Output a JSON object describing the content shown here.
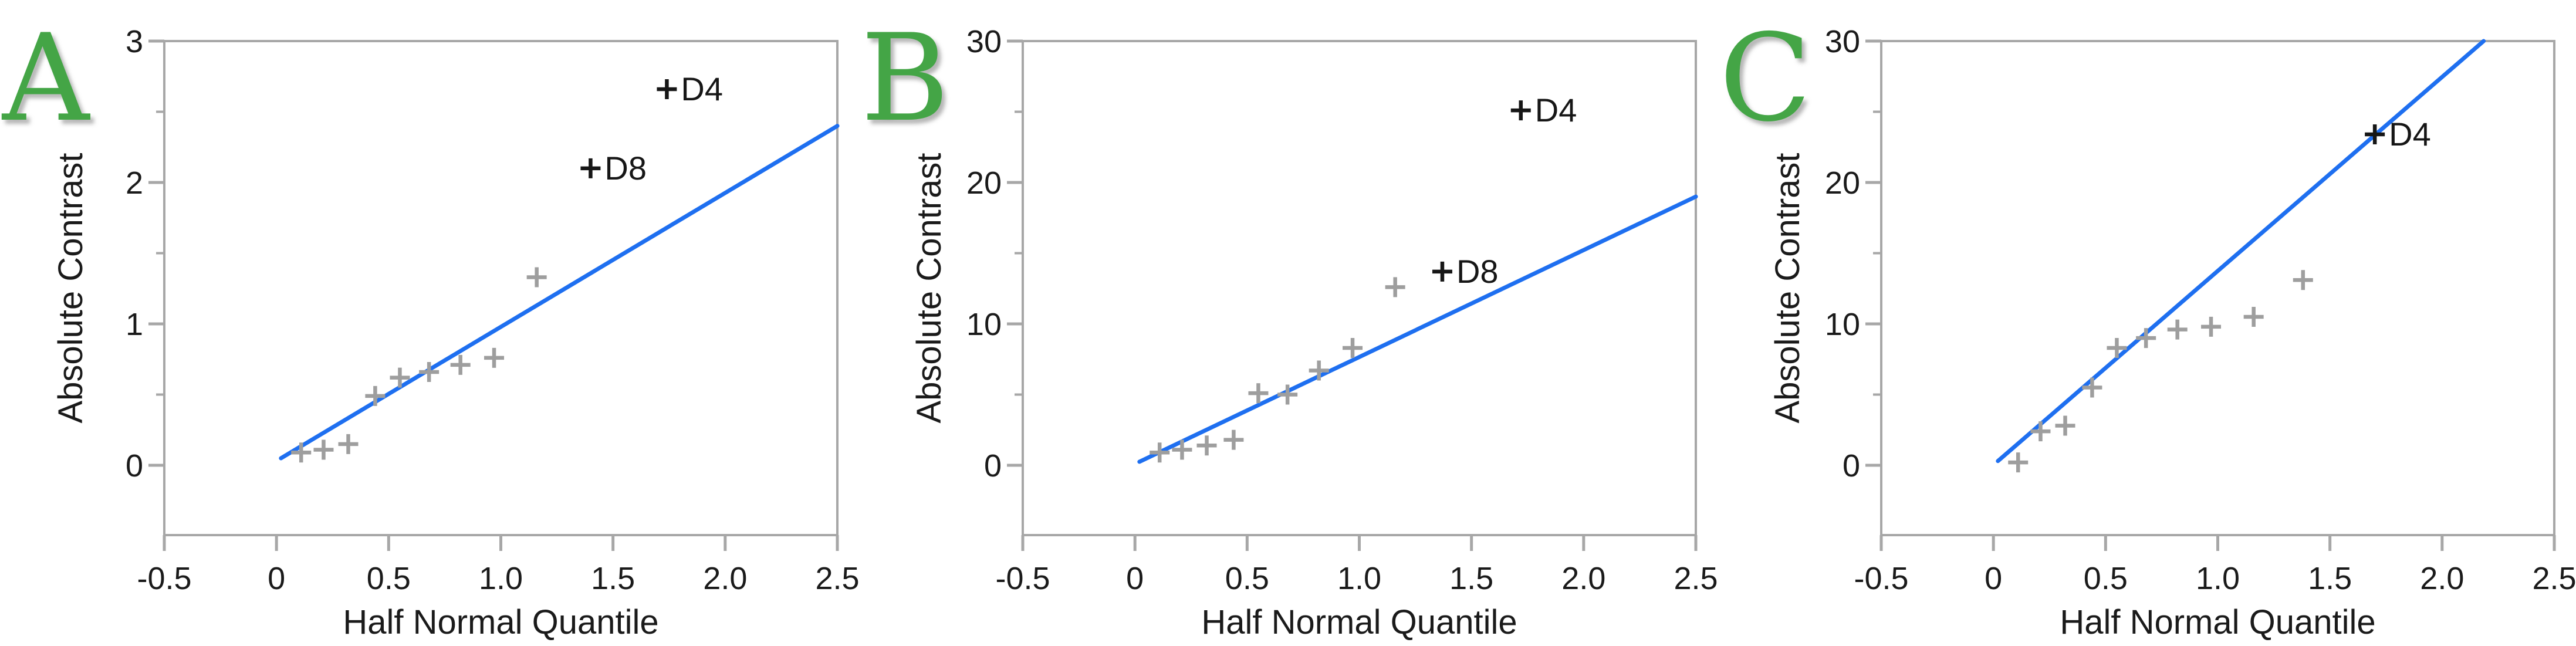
{
  "figure": {
    "x_axis_title": "Half Normal Quantile",
    "y_axis_title": "Absolute Contrast",
    "x_tick_labels": [
      "-0.5",
      "0",
      "0.5",
      "1.0",
      "1.5",
      "2.0",
      "2.5"
    ],
    "x_tick_values": [
      -0.5,
      0,
      0.5,
      1.0,
      1.5,
      2.0,
      2.5
    ]
  },
  "colors": {
    "fit_line_blue": "#1E6FF0",
    "marker_gray": "#9E9E9E",
    "outlier_black": "#161616",
    "axis_gray": "#A7A7A7",
    "tick_text_black": "#1A1A1A",
    "panel_letter_green": "#44A546",
    "background": "#FFFFFF"
  },
  "chart_data": [
    {
      "type": "scatter",
      "panel_letter": "A",
      "xlabel": "Half Normal Quantile",
      "ylabel": "Absolute Contrast",
      "xlim": [
        -0.5,
        2.5
      ],
      "ylim": [
        -0.49,
        3
      ],
      "y_tick_labels": [
        "0",
        "1",
        "2",
        "3"
      ],
      "y_tick_values": [
        0,
        1,
        2,
        3
      ],
      "y_minor_tick_values": [
        0.5,
        1.5,
        2.5
      ],
      "marker": "plus",
      "grid": false,
      "legend": null,
      "points": [
        [
          0.11,
          0.09
        ],
        [
          0.21,
          0.11
        ],
        [
          0.32,
          0.15
        ],
        [
          0.44,
          0.49
        ],
        [
          0.55,
          0.62
        ],
        [
          0.68,
          0.66
        ],
        [
          0.82,
          0.71
        ],
        [
          0.97,
          0.76
        ],
        [
          1.16,
          1.33
        ]
      ],
      "labeled_points": [
        {
          "label": "D8",
          "x": 1.4,
          "y": 2.1
        },
        {
          "label": "D4",
          "x": 1.74,
          "y": 2.66
        }
      ],
      "fit_line": {
        "x1": 0.02,
        "y1": 0.05,
        "x2": 2.5,
        "y2": 2.4
      }
    },
    {
      "type": "scatter",
      "panel_letter": "B",
      "xlabel": "Half Normal Quantile",
      "ylabel": "Absolute Contrast",
      "xlim": [
        -0.5,
        2.5
      ],
      "ylim": [
        -4.9,
        30
      ],
      "y_tick_labels": [
        "0",
        "10",
        "20",
        "30"
      ],
      "y_tick_values": [
        0,
        10,
        20,
        30
      ],
      "y_minor_tick_values": [
        5,
        15,
        25
      ],
      "marker": "plus",
      "grid": false,
      "legend": null,
      "points": [
        [
          0.11,
          0.9
        ],
        [
          0.21,
          1.1
        ],
        [
          0.32,
          1.4
        ],
        [
          0.44,
          1.8
        ],
        [
          0.55,
          5.1
        ],
        [
          0.68,
          5.0
        ],
        [
          0.82,
          6.7
        ],
        [
          0.97,
          8.3
        ],
        [
          1.16,
          12.6
        ]
      ],
      "labeled_points": [
        {
          "label": "D8",
          "x": 1.37,
          "y": 13.7
        },
        {
          "label": "D4",
          "x": 1.72,
          "y": 25.1
        }
      ],
      "fit_line": {
        "x1": 0.02,
        "y1": 0.25,
        "x2": 2.5,
        "y2": 19.0
      }
    },
    {
      "type": "scatter",
      "panel_letter": "C",
      "xlabel": "Half Normal Quantile",
      "ylabel": "Absolute Contrast",
      "xlim": [
        -0.5,
        2.5
      ],
      "ylim": [
        -4.9,
        30
      ],
      "y_tick_labels": [
        "0",
        "10",
        "20",
        "30"
      ],
      "y_tick_values": [
        0,
        10,
        20,
        30
      ],
      "y_minor_tick_values": [
        5,
        15,
        25
      ],
      "marker": "plus",
      "grid": false,
      "legend": null,
      "points": [
        [
          0.11,
          0.2
        ],
        [
          0.21,
          2.4
        ],
        [
          0.32,
          2.8
        ],
        [
          0.44,
          5.5
        ],
        [
          0.55,
          8.3
        ],
        [
          0.68,
          9.0
        ],
        [
          0.82,
          9.6
        ],
        [
          0.97,
          9.8
        ],
        [
          1.16,
          10.5
        ],
        [
          1.38,
          13.1
        ]
      ],
      "labeled_points": [
        {
          "label": "D4",
          "x": 1.7,
          "y": 23.4
        }
      ],
      "fit_line": {
        "x1": 0.02,
        "y1": 0.3,
        "x2": 2.185,
        "y2": 30.0
      }
    }
  ]
}
